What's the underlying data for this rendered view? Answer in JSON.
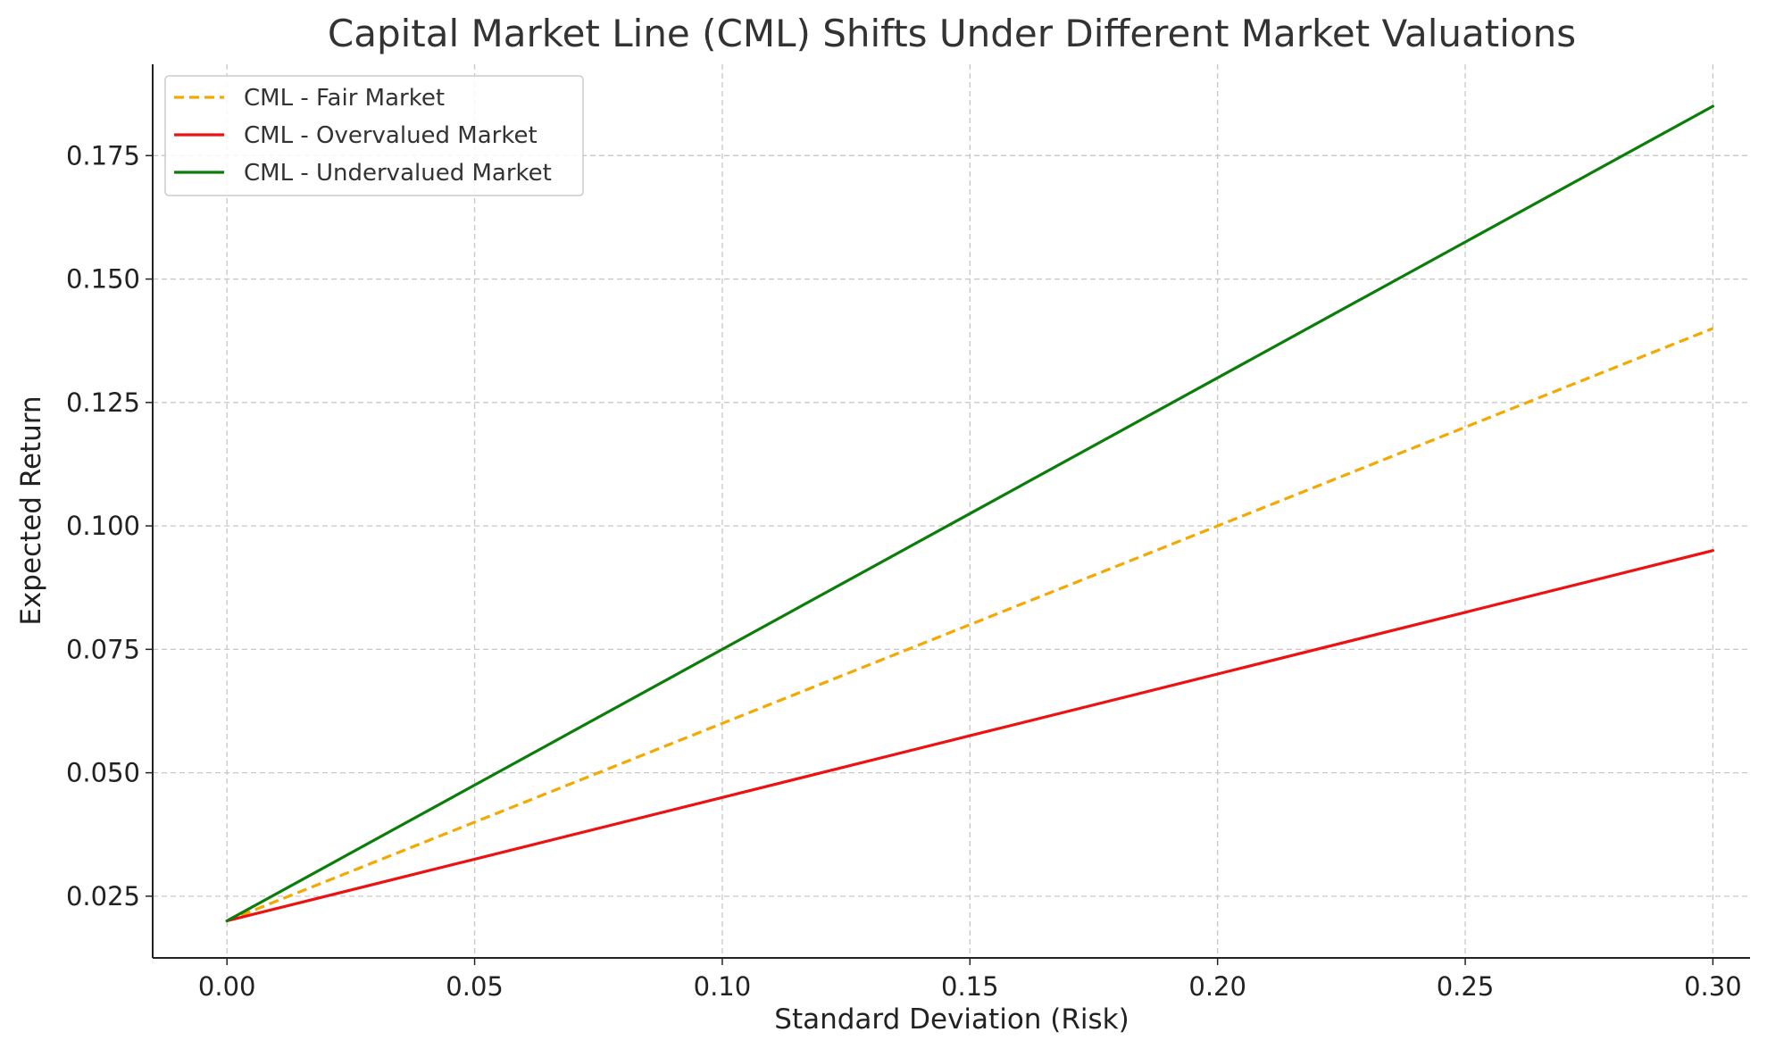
{
  "chart_data": {
    "type": "line",
    "title": "Capital Market Line (CML) Shifts Under Different Market Valuations",
    "xlabel": "Standard Deviation (Risk)",
    "ylabel": "Expected Return",
    "xlim": [
      -0.015,
      0.3075
    ],
    "ylim": [
      0.0125,
      0.1935
    ],
    "x_ticks": [
      "0.00",
      "0.05",
      "0.10",
      "0.15",
      "0.20",
      "0.25",
      "0.30"
    ],
    "y_ticks": [
      "0.025",
      "0.050",
      "0.075",
      "0.100",
      "0.125",
      "0.150",
      "0.175"
    ],
    "grid": true,
    "legend_position": "top-left",
    "series": [
      {
        "name": "CML - Fair Market",
        "color": "#f5a800",
        "style": "dashed",
        "x": [
          0.0,
          0.05,
          0.1,
          0.15,
          0.2,
          0.25,
          0.3
        ],
        "y": [
          0.02,
          0.04,
          0.06,
          0.08,
          0.1,
          0.12,
          0.14
        ]
      },
      {
        "name": "CML - Overvalued Market",
        "color": "#ee1111",
        "style": "solid",
        "x": [
          0.0,
          0.05,
          0.1,
          0.15,
          0.2,
          0.25,
          0.3
        ],
        "y": [
          0.02,
          0.0325,
          0.045,
          0.0575,
          0.07,
          0.0825,
          0.095
        ]
      },
      {
        "name": "CML - Undervalued Market",
        "color": "#0a7d0a",
        "style": "solid",
        "x": [
          0.0,
          0.05,
          0.1,
          0.15,
          0.2,
          0.25,
          0.3
        ],
        "y": [
          0.02,
          0.0475,
          0.075,
          0.1025,
          0.13,
          0.1575,
          0.185
        ]
      }
    ]
  }
}
